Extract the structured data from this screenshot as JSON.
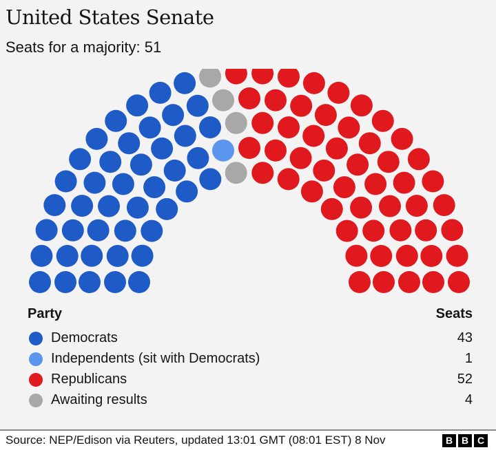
{
  "chart_data": {
    "type": "parliament",
    "title": "United States Senate",
    "subtitle": "Seats for a majority: 51",
    "total_seats": 100,
    "rows": 5,
    "series": [
      {
        "name": "Democrats",
        "value": 43,
        "color": "#1f5bc6"
      },
      {
        "name": "Independents (sit with Democrats)",
        "value": 1,
        "color": "#5b95ee"
      },
      {
        "name": "Awaiting results",
        "value": 4,
        "color": "#a8a8a8"
      },
      {
        "name": "Republicans",
        "value": 52,
        "color": "#e0191e"
      }
    ]
  },
  "legend": {
    "party_header": "Party",
    "seats_header": "Seats",
    "items": [
      {
        "name": "Democrats",
        "seats": "43",
        "color": "#1f5bc6"
      },
      {
        "name": "Independents (sit with Democrats)",
        "seats": "1",
        "color": "#5b95ee"
      },
      {
        "name": "Republicans",
        "seats": "52",
        "color": "#e0191e"
      },
      {
        "name": "Awaiting results",
        "seats": "4",
        "color": "#a8a8a8"
      }
    ]
  },
  "footer": {
    "source": "Source: NEP/Edison via Reuters, updated 13:01 GMT (08:01 EST) 8 Nov",
    "logo": [
      "B",
      "B",
      "C"
    ]
  }
}
